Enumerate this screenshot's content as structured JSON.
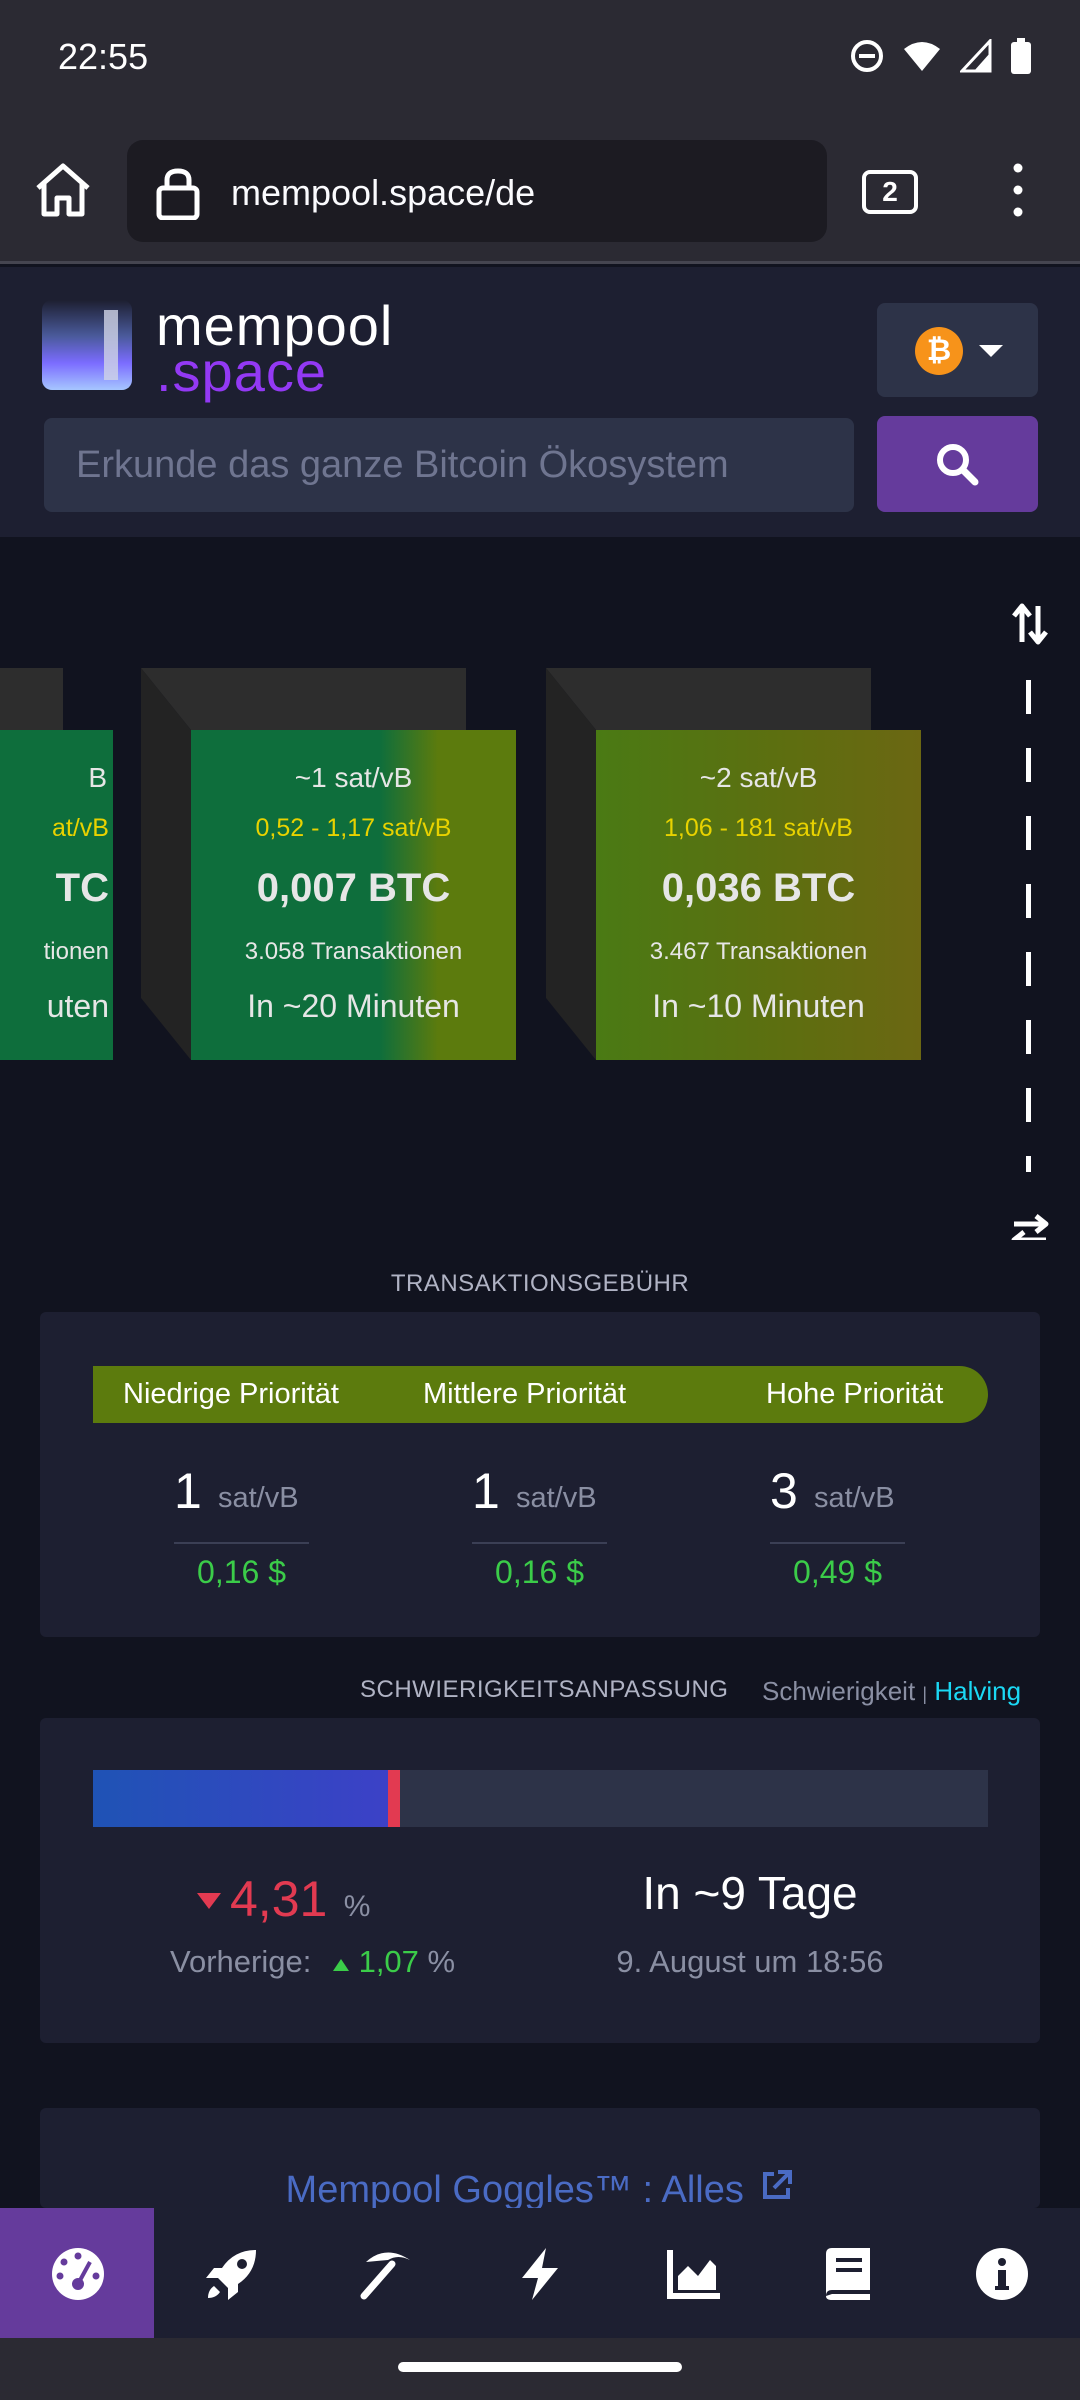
{
  "status_bar": {
    "time": "22:55"
  },
  "browser": {
    "url": "mempool.space/de",
    "tab_count": "2"
  },
  "header": {
    "logo_line1": "mempool",
    "logo_line2": ".space",
    "network_symbol": "₿",
    "search_placeholder": "Erkunde das ganze Bitcoin Ökosystem"
  },
  "blocks": [
    {
      "fee": "~1 sat/vB",
      "range": "0,52 - 1,17 sat/vB",
      "size": "0,007 BTC",
      "txs": "3.058 Transaktionen",
      "eta": "In ~20 Minuten"
    },
    {
      "fee": "~2 sat/vB",
      "range": "1,06 - 181 sat/vB",
      "size": "0,036 BTC",
      "txs": "3.467 Transaktionen",
      "eta": "In ~10 Minuten"
    }
  ],
  "partial_block": {
    "fee": "B",
    "range": "at/vB",
    "size": "TC",
    "txs": "tionen",
    "eta": "uten"
  },
  "fees": {
    "title": "TRANSAKTIONSGEBÜHR",
    "low_label": "Niedrige Priorität",
    "mid_label": "Mittlere Priorität",
    "high_label": "Hohe Priorität",
    "unit": "sat/vB",
    "low_value": "1",
    "low_usd": "0,16 $",
    "mid_value": "1",
    "mid_usd": "0,16 $",
    "high_value": "3",
    "high_usd": "0,49 $"
  },
  "difficulty": {
    "title": "SCHWIERIGKEITSANPASSUNG",
    "tab_difficulty": "Schwierigkeit",
    "tab_separator": "|",
    "tab_halving": "Halving",
    "change": "4,31",
    "percent": "%",
    "previous_label": "Vorherige:",
    "previous_change": "1,07",
    "eta": "In ~9 Tage",
    "eta_date": "9. August um 18:56",
    "progress_fraction": 0.33
  },
  "goggles": {
    "link": "Mempool Goggles™ : Alles"
  },
  "colors": {
    "accent": "#653b9c",
    "fee_bar": "#5c7b0d",
    "positive": "#3bcc49",
    "negative": "#e23a51"
  },
  "nav_icons": [
    "dashboard-icon",
    "rocket-icon",
    "pickaxe-icon",
    "lightning-icon",
    "chart-icon",
    "book-icon",
    "info-icon"
  ]
}
